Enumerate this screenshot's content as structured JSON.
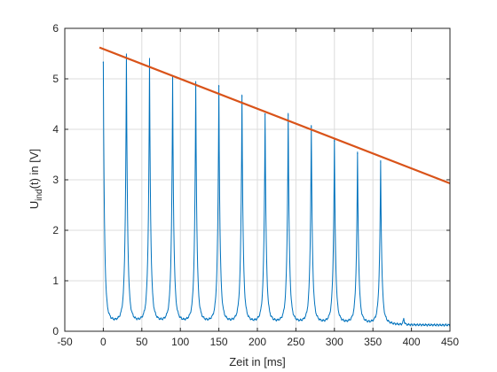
{
  "chart_data": {
    "type": "line",
    "title": "",
    "xlabel": "Zeit in [ms]",
    "ylabel": {
      "prefix": "U",
      "subscript": "ind",
      "suffix": "(t) in [V]"
    },
    "xlim": [
      -50,
      450
    ],
    "ylim": [
      0,
      6
    ],
    "xticks": [
      -50,
      0,
      50,
      100,
      150,
      200,
      250,
      300,
      350,
      400,
      450
    ],
    "yticks": [
      0,
      1,
      2,
      3,
      4,
      5,
      6
    ],
    "grid": true,
    "legend": "none",
    "series": [
      {
        "color": "#0072BD",
        "style": "signal",
        "pulse_times": [
          0,
          30,
          60,
          90,
          120,
          150,
          180,
          210,
          240,
          270,
          300,
          330,
          360
        ],
        "pulse_peaks": [
          5.32,
          5.45,
          5.35,
          5.0,
          4.9,
          4.85,
          4.65,
          4.3,
          4.28,
          4.05,
          3.77,
          3.52,
          3.35
        ],
        "baseline": 0.12,
        "x_start": 0,
        "x_end": 450,
        "small_spike": {
          "x": 390,
          "y": 0.25
        }
      },
      {
        "color": "#D95319",
        "style": "line",
        "x": [
          -5,
          450
        ],
        "y": [
          5.62,
          2.93
        ]
      }
    ]
  }
}
